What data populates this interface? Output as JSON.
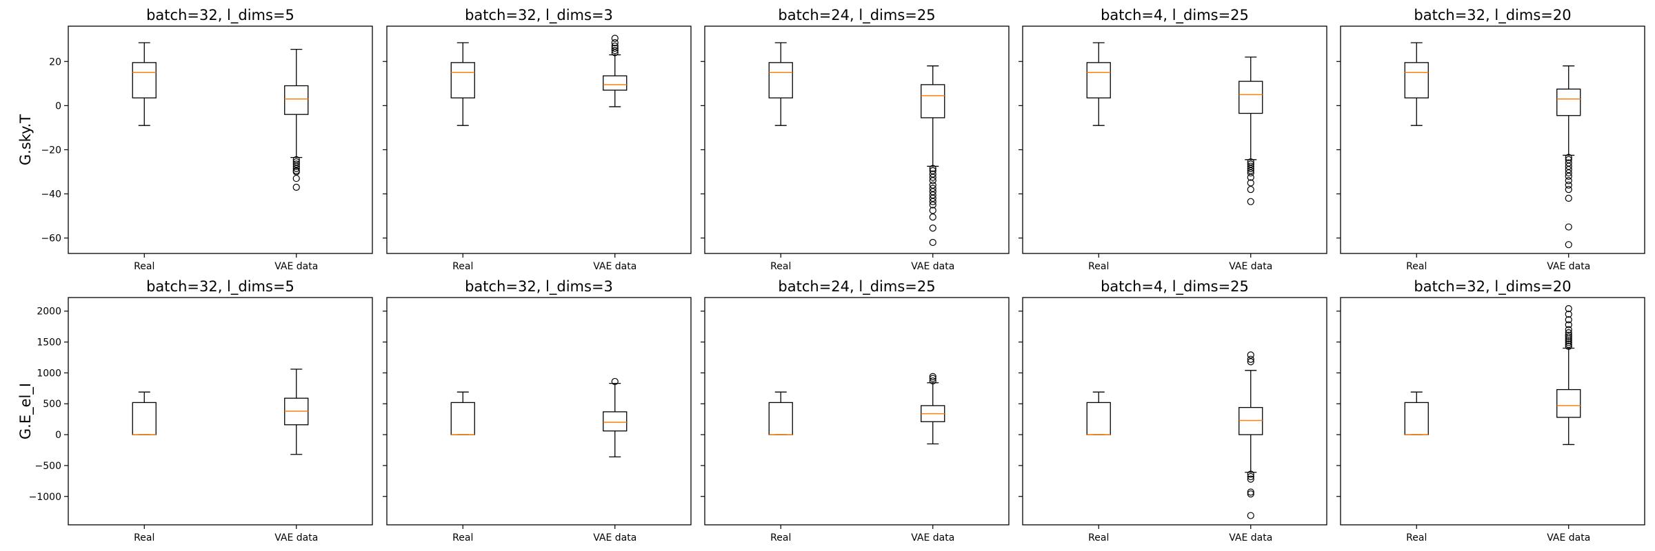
{
  "chart_data": {
    "type": "box",
    "categories": [
      "Real",
      "VAE data"
    ],
    "rows": [
      {
        "ylabel": "G.sky.T",
        "ylim": [
          -67,
          36
        ],
        "yticks": [
          20,
          0,
          -20,
          -40,
          -60
        ],
        "panels": [
          {
            "title": "batch=32, l_dims=5",
            "boxes": [
              {
                "whisker_low": -9,
                "q1": 3.5,
                "median": 15,
                "q3": 19.5,
                "whisker_high": 28.5,
                "outliers": []
              },
              {
                "whisker_low": -23.5,
                "q1": -4,
                "median": 3,
                "q3": 9,
                "whisker_high": 25.5,
                "outliers": [
                  -24.5,
                  -25.5,
                  -26.5,
                  -27.5,
                  -28.5,
                  -29.5,
                  -30,
                  -33,
                  -37
                ]
              }
            ]
          },
          {
            "title": "batch=32, l_dims=3",
            "boxes": [
              {
                "whisker_low": -9,
                "q1": 3.5,
                "median": 15,
                "q3": 19.5,
                "whisker_high": 28.5,
                "outliers": []
              },
              {
                "whisker_low": -0.5,
                "q1": 7,
                "median": 9.5,
                "q3": 13.5,
                "whisker_high": 23,
                "outliers": [
                  24,
                  25,
                  26,
                  27,
                  28.5,
                  30.5
                ]
              }
            ]
          },
          {
            "title": "batch=24, l_dims=25",
            "boxes": [
              {
                "whisker_low": -9,
                "q1": 3.5,
                "median": 15,
                "q3": 19.5,
                "whisker_high": 28.5,
                "outliers": []
              },
              {
                "whisker_low": -27.5,
                "q1": -5.5,
                "median": 4.5,
                "q3": 9.5,
                "whisker_high": 18,
                "outliers": [
                  -28.5,
                  -29.5,
                  -31,
                  -32.5,
                  -34,
                  -36,
                  -37.5,
                  -39,
                  -40.5,
                  -42,
                  -43.5,
                  -45,
                  -47.5,
                  -50.5,
                  -55.5,
                  -62
                ]
              }
            ]
          },
          {
            "title": "batch=4, l_dims=25",
            "boxes": [
              {
                "whisker_low": -9,
                "q1": 3.5,
                "median": 15,
                "q3": 19.5,
                "whisker_high": 28.5,
                "outliers": []
              },
              {
                "whisker_low": -24.5,
                "q1": -3.5,
                "median": 5,
                "q3": 11,
                "whisker_high": 22,
                "outliers": [
                  -25.5,
                  -26.5,
                  -27.5,
                  -28.5,
                  -29.5,
                  -30.5,
                  -32.5,
                  -35,
                  -38,
                  -43.5
                ]
              }
            ]
          },
          {
            "title": "batch=32, l_dims=20",
            "boxes": [
              {
                "whisker_low": -9,
                "q1": 3.5,
                "median": 15,
                "q3": 19.5,
                "whisker_high": 28.5,
                "outliers": []
              },
              {
                "whisker_low": -22.5,
                "q1": -4.5,
                "median": 3,
                "q3": 7.5,
                "whisker_high": 18,
                "outliers": [
                  -23.5,
                  -24.5,
                  -26,
                  -27.5,
                  -29,
                  -30.5,
                  -32,
                  -34,
                  -36,
                  -38,
                  -42,
                  -55,
                  -63
                ]
              }
            ]
          }
        ]
      },
      {
        "ylabel": "G.E_el_I",
        "ylim": [
          -1460,
          2220
        ],
        "yticks": [
          2000,
          1500,
          1000,
          500,
          0,
          -500,
          -1000
        ],
        "panels": [
          {
            "title": "batch=32, l_dims=5",
            "boxes": [
              {
                "whisker_low": 0,
                "q1": 0,
                "median": 0,
                "q3": 520,
                "whisker_high": 690,
                "outliers": []
              },
              {
                "whisker_low": -320,
                "q1": 160,
                "median": 380,
                "q3": 590,
                "whisker_high": 1060,
                "outliers": []
              }
            ]
          },
          {
            "title": "batch=32, l_dims=3",
            "boxes": [
              {
                "whisker_low": 0,
                "q1": 0,
                "median": 0,
                "q3": 520,
                "whisker_high": 690,
                "outliers": []
              },
              {
                "whisker_low": -360,
                "q1": 60,
                "median": 200,
                "q3": 370,
                "whisker_high": 830,
                "outliers": [
                  860
                ]
              }
            ]
          },
          {
            "title": "batch=24, l_dims=25",
            "boxes": [
              {
                "whisker_low": 0,
                "q1": 0,
                "median": 0,
                "q3": 520,
                "whisker_high": 690,
                "outliers": []
              },
              {
                "whisker_low": -150,
                "q1": 210,
                "median": 340,
                "q3": 470,
                "whisker_high": 840,
                "outliers": [
                  870,
                  910,
                  940
                ]
              }
            ]
          },
          {
            "title": "batch=4, l_dims=25",
            "boxes": [
              {
                "whisker_low": 0,
                "q1": 0,
                "median": 0,
                "q3": 520,
                "whisker_high": 690,
                "outliers": []
              },
              {
                "whisker_low": -610,
                "q1": 0,
                "median": 230,
                "q3": 440,
                "whisker_high": 1040,
                "outliers": [
                  -640,
                  -680,
                  -720,
                  -930,
                  -960,
                  1180,
                  1220,
                  1290,
                  -1310
                ]
              }
            ]
          },
          {
            "title": "batch=32, l_dims=20",
            "boxes": [
              {
                "whisker_low": 0,
                "q1": 0,
                "median": 0,
                "q3": 520,
                "whisker_high": 690,
                "outliers": []
              },
              {
                "whisker_low": -160,
                "q1": 280,
                "median": 470,
                "q3": 730,
                "whisker_high": 1400,
                "outliers": [
                  1430,
                  1460,
                  1490,
                  1520,
                  1550,
                  1580,
                  1610,
                  1650,
                  1700,
                  1780,
                  1860,
                  1950,
                  2040
                ]
              }
            ]
          }
        ]
      }
    ],
    "colors": {
      "box": "#000000",
      "median": "#ff7f0e",
      "background": "#ffffff"
    }
  }
}
